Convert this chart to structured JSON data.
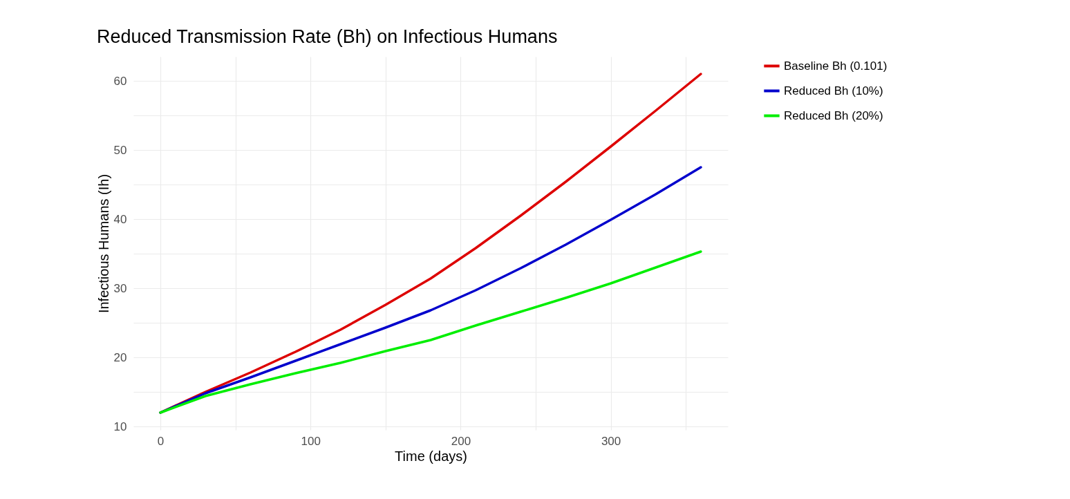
{
  "chart_data": {
    "type": "line",
    "title": "Reduced Transmission Rate (Bh) on Infectious Humans",
    "xlabel": "Time (days)",
    "ylabel": "Infectious Humans (Ih)",
    "x": [
      0,
      30,
      60,
      90,
      120,
      150,
      180,
      210,
      240,
      270,
      300,
      330,
      360
    ],
    "series": [
      {
        "name": "Baseline Bh (0.101)",
        "color": "#dd0000",
        "values": [
          12,
          15,
          17.8,
          20.8,
          24,
          27.6,
          31.4,
          35.8,
          40.5,
          45.4,
          50.5,
          55.7,
          61
        ]
      },
      {
        "name": "Reduced Bh (10%)",
        "color": "#0000cc",
        "values": [
          12,
          14.8,
          17.1,
          19.5,
          21.9,
          24.3,
          26.8,
          29.7,
          32.9,
          36.3,
          39.9,
          43.6,
          47.5
        ]
      },
      {
        "name": "Reduced Bh (20%)",
        "color": "#00ee00",
        "values": [
          12,
          14.4,
          16.1,
          17.7,
          19.2,
          20.9,
          22.5,
          24.6,
          26.6,
          28.6,
          30.7,
          33,
          35.3
        ]
      }
    ],
    "xlim": [
      -18,
      378
    ],
    "ylim": [
      9.5,
      63.5
    ],
    "xticks": [
      0,
      {
        "value": 50,
        "label": null
      },
      100,
      {
        "value": 150,
        "label": null
      },
      200,
      {
        "value": 250,
        "label": null
      },
      300,
      {
        "value": 350,
        "label": null
      }
    ],
    "yticks": [
      10,
      {
        "value": 15,
        "label": null
      },
      20,
      {
        "value": 25,
        "label": null
      },
      30,
      {
        "value": 35,
        "label": null
      },
      40,
      {
        "value": 45,
        "label": null
      },
      50,
      {
        "value": 55,
        "label": null
      },
      60
    ],
    "grid": true,
    "legend": "right",
    "line_style": "solid"
  }
}
